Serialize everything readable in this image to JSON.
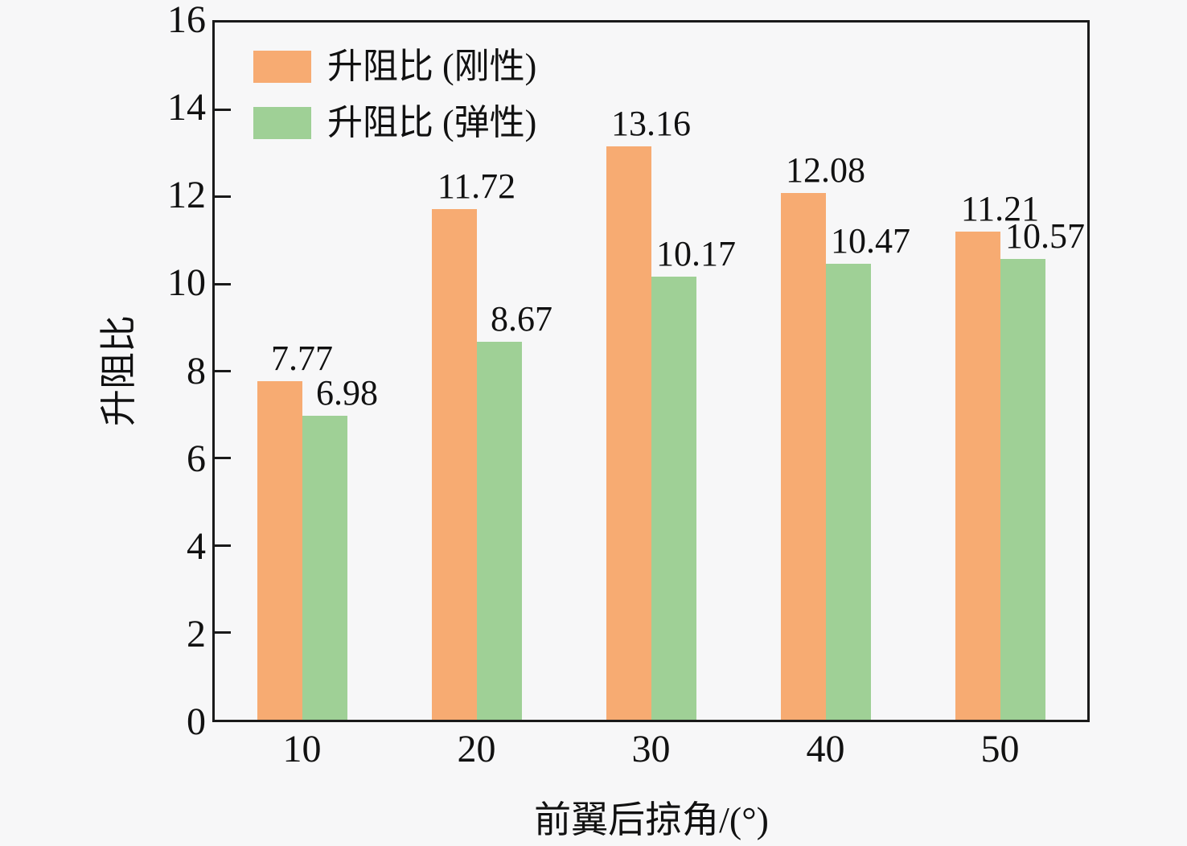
{
  "chart_data": {
    "type": "bar",
    "title": "",
    "categories": [
      "10",
      "20",
      "30",
      "40",
      "50"
    ],
    "series": [
      {
        "name": "升阻比 (刚性)",
        "color": "#f7ab72",
        "values": [
          7.77,
          11.72,
          13.16,
          12.08,
          11.21
        ]
      },
      {
        "name": "升阻比 (弹性)",
        "color": "#9fd096",
        "values": [
          6.98,
          8.67,
          10.17,
          10.47,
          10.57
        ]
      }
    ],
    "xlabel": "前翼后掠角/(°)",
    "ylabel": "升阻比",
    "ylim": [
      0,
      16
    ],
    "yticks": [
      0,
      2,
      4,
      6,
      8,
      10,
      12,
      14,
      16
    ],
    "grid": false,
    "legend_position": "top-left",
    "value_labels": true,
    "value_label_decimals": 2
  },
  "colors": {
    "background": "#f7f7f8",
    "axis": "#1a1a1a",
    "text": "#111111",
    "series_rigid": "#f7ab72",
    "series_elastic": "#9fd096"
  }
}
